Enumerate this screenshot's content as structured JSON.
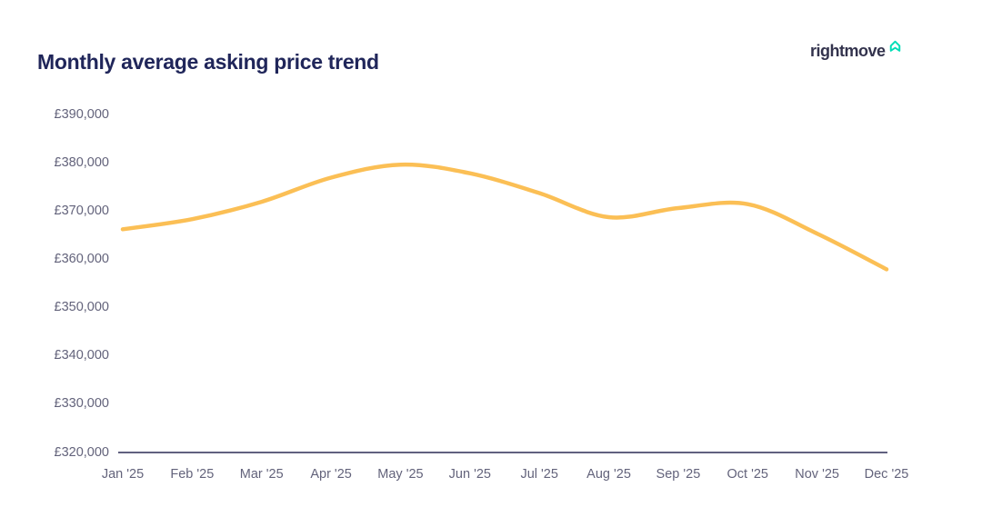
{
  "header": {
    "title": "Monthly average asking price trend"
  },
  "logo": {
    "text": "rightmove",
    "icon": "rightmove-house-icon"
  },
  "colors": {
    "background": "#ffffff",
    "title": "#20265a",
    "axis_label": "#63637b",
    "axis_line": "#2b2b55",
    "line": "#fbbf55",
    "logo_text": "#33334d",
    "logo_icon": "#00deb6"
  },
  "chart_data": {
    "type": "line",
    "title": "Monthly average asking price trend",
    "categories": [
      "Jan '25",
      "Feb '25",
      "Mar '25",
      "Apr '25",
      "May '25",
      "Jun '25",
      "Jul '25",
      "Aug '25",
      "Sep '25",
      "Oct '25",
      "Nov '25",
      "Dec '25"
    ],
    "series": [
      {
        "name": "Monthly average asking price",
        "color": "#fbbf55",
        "values": [
          366200,
          368300,
          371900,
          376900,
          379600,
          377800,
          373700,
          368700,
          370600,
          371400,
          365300,
          357900
        ]
      }
    ],
    "xlabel": "",
    "ylabel": "",
    "ylim": [
      320000,
      390000
    ],
    "y_tick_step": 10000,
    "y_tick_labels": [
      "£320,000",
      "£330,000",
      "£340,000",
      "£350,000",
      "£360,000",
      "£370,000",
      "£380,000",
      "£390,000"
    ],
    "currency": "£",
    "grid": false,
    "legend": "none",
    "line_smooth": true
  }
}
